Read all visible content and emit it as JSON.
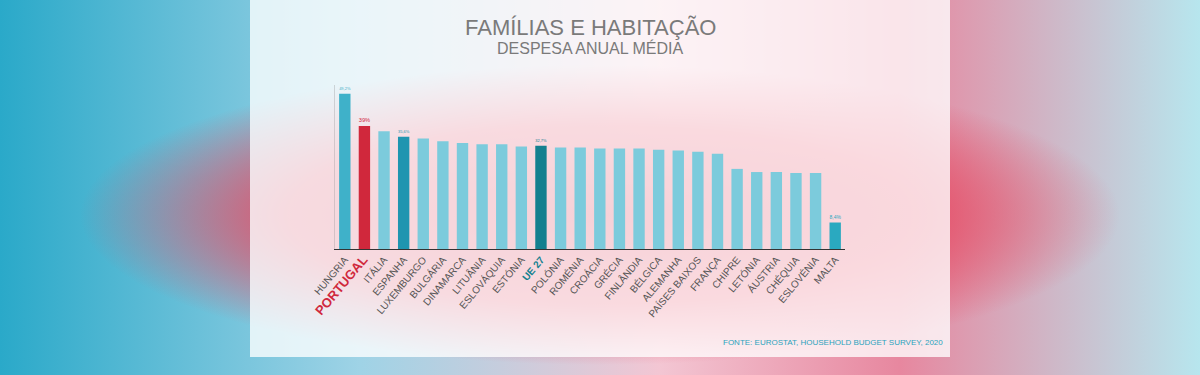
{
  "chart_data": {
    "type": "bar",
    "title": "FAMÍLIAS E HABITAÇÃO",
    "subtitle": "DESPESA ANUAL MÉDIA",
    "source": "FONTE: EUROSTAT, HOUSEHOLD BUDGET SURVEY, 2020",
    "categories": [
      "HUNGRIA",
      "PORTUGAL",
      "ITÁLIA",
      "ESPANHA",
      "LUXEMBURGO",
      "BULGÁRIA",
      "DINAMARCA",
      "LITUÂNIA",
      "ESLOVÁQUIA",
      "ESTÓNIA",
      "UE 27",
      "POLÓNIA",
      "ROMÉNIA",
      "CROÁCIA",
      "GRÉCIA",
      "FINLÂNDIA",
      "BÉLGICA",
      "ALEMANHA",
      "PAÍSES BAIXOS",
      "FRANÇA",
      "CHIPRE",
      "LETÓNIA",
      "ÁUSTRIA",
      "CHÉQUIA",
      "ESLOVÉNIA",
      "MALTA"
    ],
    "values": [
      49.2,
      39,
      37.3,
      35.6,
      35.0,
      34.2,
      33.6,
      33.2,
      33.2,
      32.5,
      32.7,
      32.2,
      32.2,
      31.9,
      31.9,
      31.9,
      31.5,
      31.2,
      30.8,
      30.2,
      25.4,
      24.4,
      24.4,
      24.1,
      24.1,
      8.4
    ],
    "value_labels": [
      "49,2%",
      "39%",
      null,
      "35,6%",
      null,
      null,
      null,
      null,
      null,
      null,
      "32,7%",
      null,
      null,
      null,
      null,
      null,
      null,
      null,
      null,
      null,
      null,
      null,
      null,
      null,
      null,
      "8,4%"
    ],
    "colors": [
      "#3fb1c9",
      "#d0283c",
      "#7ccbdc",
      "#1f95b0",
      "#7ccbdc",
      "#7ccbdc",
      "#7ccbdc",
      "#7ccbdc",
      "#7ccbdc",
      "#7ccbdc",
      "#13808f",
      "#7ccbdc",
      "#7ccbdc",
      "#7ccbdc",
      "#7ccbdc",
      "#7ccbdc",
      "#7ccbdc",
      "#7ccbdc",
      "#7ccbdc",
      "#7ccbdc",
      "#7ccbdc",
      "#7ccbdc",
      "#7ccbdc",
      "#7ccbdc",
      "#7ccbdc",
      "#2aa9c0"
    ],
    "ylim": [
      0,
      52
    ],
    "yticks": [],
    "tick_labels": "x",
    "grid": false
  }
}
